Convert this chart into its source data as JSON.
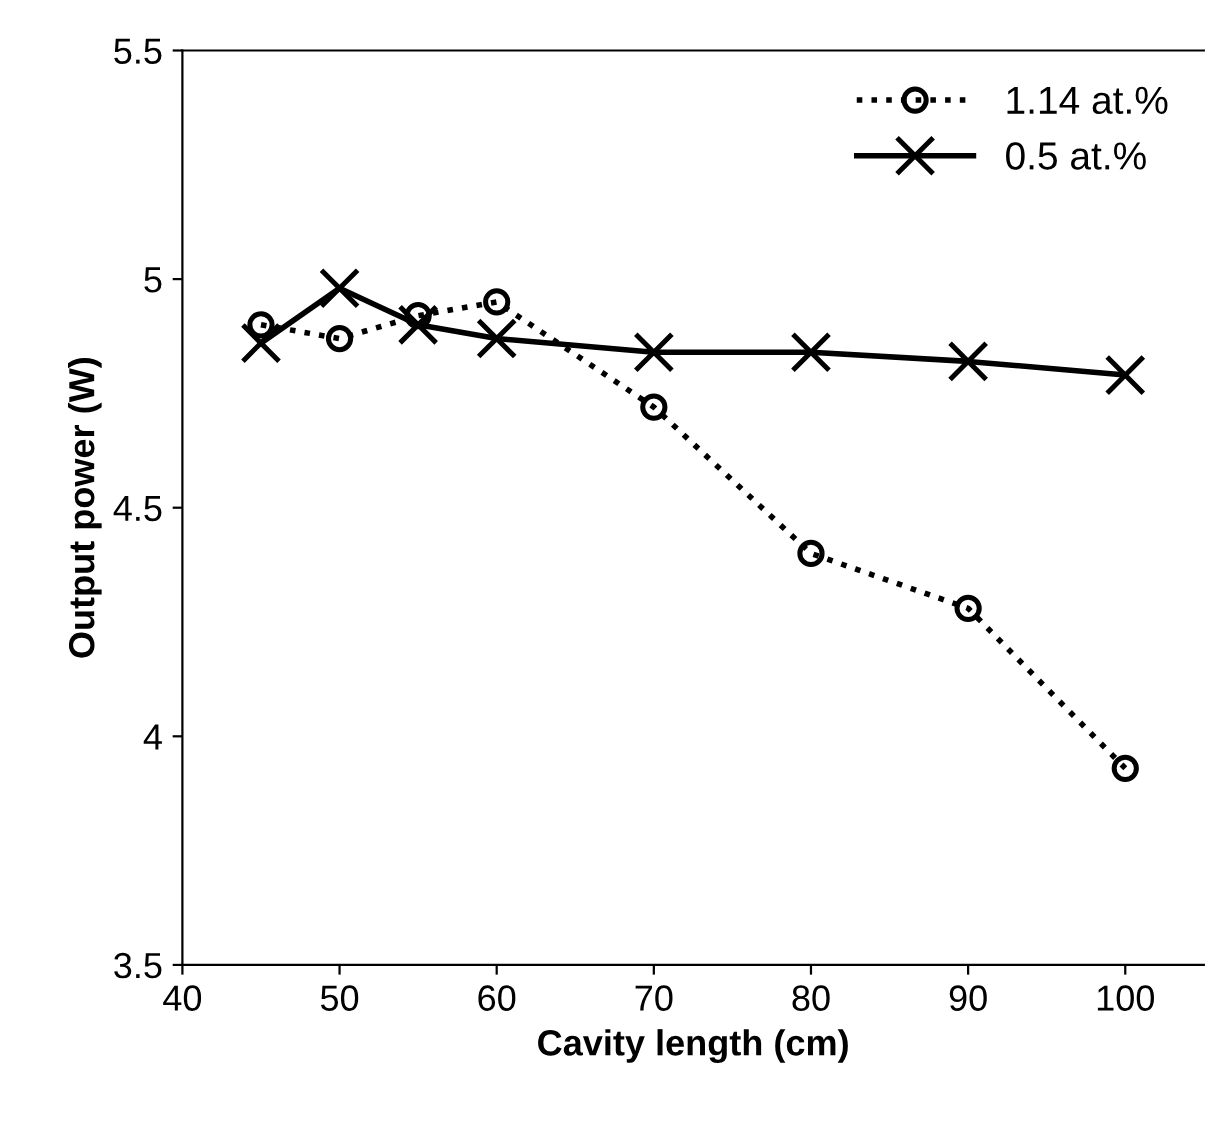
{
  "chart_data": {
    "type": "line",
    "xlabel": "Cavity length (cm)",
    "ylabel": "Output power (W)",
    "x": [
      45,
      50,
      55,
      60,
      70,
      80,
      90,
      100
    ],
    "series": [
      {
        "name": "1.14 at.%",
        "color": "#000000",
        "marker": "circle",
        "line_style": "dotted",
        "values": [
          4.9,
          4.87,
          4.92,
          4.95,
          4.72,
          4.4,
          4.28,
          3.93
        ]
      },
      {
        "name": "0.5 at.%",
        "color": "#000000",
        "marker": "cross",
        "line_style": "solid",
        "values": [
          4.86,
          4.98,
          4.9,
          4.87,
          4.84,
          4.84,
          4.82,
          4.79
        ]
      }
    ],
    "xlim": [
      40,
      105
    ],
    "xticks": [
      40,
      50,
      60,
      70,
      80,
      90,
      100
    ],
    "ylim": [
      3.5,
      5.5
    ],
    "yticks": [
      3.5,
      4,
      4.5,
      5,
      5.5
    ],
    "grid": false,
    "legend": "top right"
  }
}
